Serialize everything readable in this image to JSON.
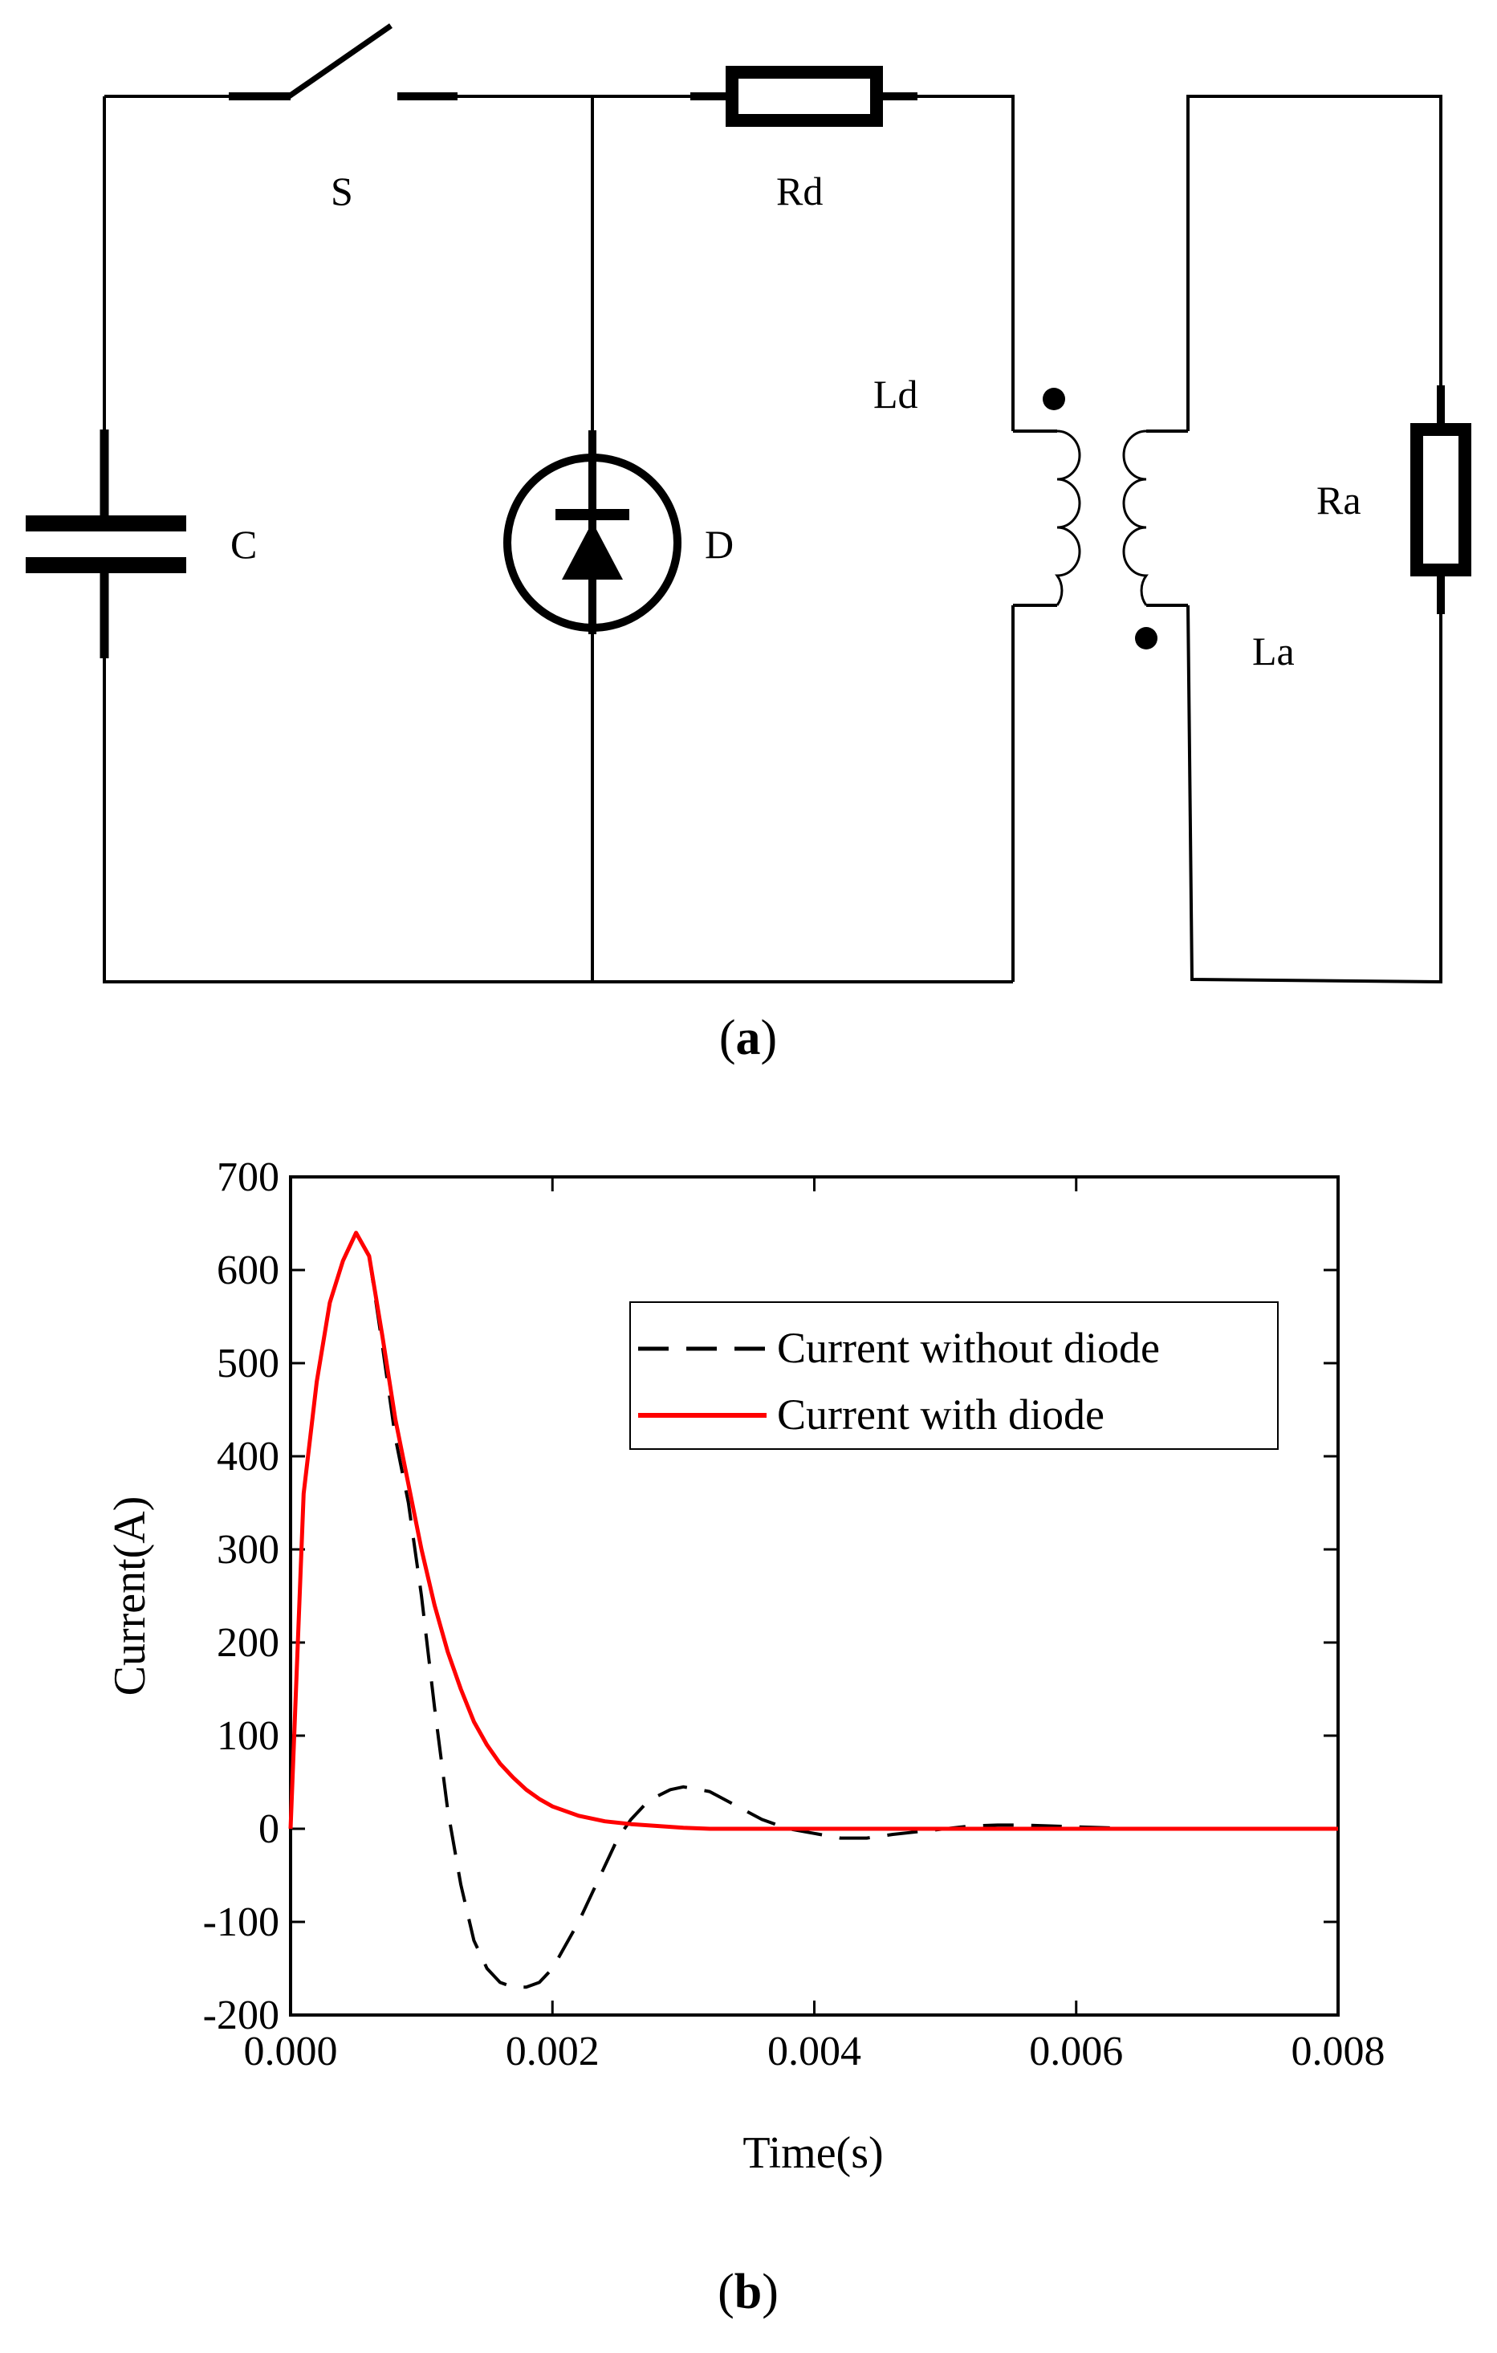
{
  "circuit": {
    "labels": {
      "switch": "S",
      "resistor_d": "Rd",
      "inductor_d": "Ld",
      "capacitor": "C",
      "diode": "D",
      "resistor_a": "Ra",
      "inductor_a": "La"
    },
    "caption_open": "(",
    "caption_letter": "a",
    "caption_close": ")"
  },
  "plot": {
    "caption_open": "(",
    "caption_letter": "b",
    "caption_close": ")"
  },
  "chart_data": {
    "type": "line",
    "xlabel": "Time(s)",
    "ylabel": "Current(A)",
    "xlim": [
      0,
      0.008
    ],
    "ylim": [
      -200,
      700
    ],
    "x_ticks": [
      "0.000",
      "0.002",
      "0.004",
      "0.006",
      "0.008"
    ],
    "y_ticks": [
      "700",
      "600",
      "500",
      "400",
      "300",
      "200",
      "100",
      "0",
      "-100",
      "-200"
    ],
    "legend_position": "top-right",
    "series": [
      {
        "name": "Current without diode",
        "color": "#000000",
        "style": "dashed",
        "x": [
          0,
          0.0001,
          0.0002,
          0.0003,
          0.0004,
          0.0005,
          0.0006,
          0.0007,
          0.0008,
          0.0009,
          0.001,
          0.0011,
          0.0012,
          0.0013,
          0.0014,
          0.0015,
          0.0016,
          0.0017,
          0.0018,
          0.0019,
          0.002,
          0.0021,
          0.0022,
          0.0023,
          0.0024,
          0.0025,
          0.0026,
          0.0027,
          0.0028,
          0.0029,
          0.003,
          0.0032,
          0.0034,
          0.0036,
          0.0038,
          0.004,
          0.0042,
          0.0044,
          0.0046,
          0.0048,
          0.005,
          0.0052,
          0.0054,
          0.0056,
          0.0058,
          0.006,
          0.0065,
          0.007,
          0.0075,
          0.008
        ],
        "y": [
          0,
          360,
          480,
          565,
          610,
          640,
          615,
          520,
          420,
          350,
          250,
          130,
          20,
          -60,
          -120,
          -150,
          -165,
          -170,
          -170,
          -165,
          -150,
          -125,
          -100,
          -70,
          -40,
          -10,
          10,
          25,
          35,
          42,
          45,
          40,
          25,
          10,
          0,
          -5,
          -10,
          -10,
          -6,
          -3,
          0,
          3,
          4,
          4,
          3,
          2,
          0,
          0,
          0,
          0
        ]
      },
      {
        "name": "Current with diode",
        "color": "#ff0000",
        "style": "solid",
        "x": [
          0,
          0.0001,
          0.0002,
          0.0003,
          0.0004,
          0.0005,
          0.0006,
          0.0007,
          0.0008,
          0.0009,
          0.001,
          0.0011,
          0.0012,
          0.0013,
          0.0014,
          0.0015,
          0.0016,
          0.0017,
          0.0018,
          0.0019,
          0.002,
          0.0022,
          0.0024,
          0.0026,
          0.0028,
          0.003,
          0.0032,
          0.0034,
          0.0036,
          0.0038,
          0.004,
          0.0045,
          0.005,
          0.006,
          0.007,
          0.008
        ],
        "y": [
          0,
          360,
          480,
          565,
          610,
          640,
          615,
          530,
          440,
          370,
          300,
          240,
          190,
          150,
          115,
          90,
          70,
          55,
          42,
          32,
          24,
          14,
          8,
          5,
          3,
          1,
          0,
          0,
          0,
          0,
          0,
          0,
          0,
          0,
          0,
          0
        ]
      }
    ]
  }
}
